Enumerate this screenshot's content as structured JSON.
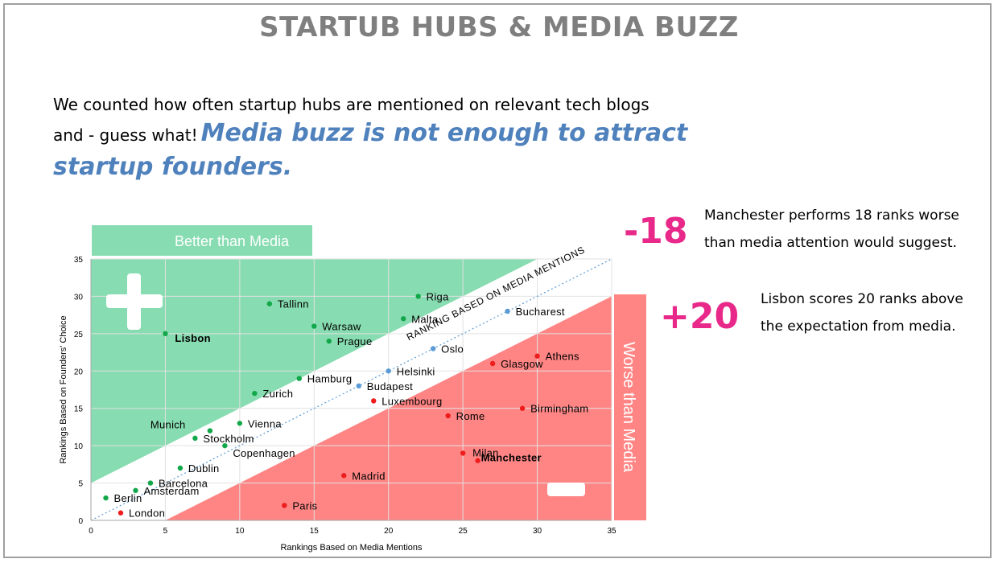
{
  "page": {
    "title": "STARTUB HUBS & MEDIA BUZZ",
    "intro_line1": "We counted how often startup hubs are mentioned on relevant tech blogs",
    "intro_line2": "and - guess what!",
    "highlight_line1": "Media buzz is not enough to attract",
    "highlight_line2": "startup founders."
  },
  "callouts": [
    {
      "number": "-18",
      "line1": "Manchester performs 18 ranks worse",
      "line2": "than  media attention would suggest."
    },
    {
      "number": "+20",
      "line1": "Lisbon scores 20 ranks above",
      "line2": "the expectation from media."
    }
  ],
  "colors": {
    "better_zone": "#88dcb1",
    "worse_zone": "#ff8585",
    "better_point": "#12a84a",
    "neutral_point": "#5b9bd5",
    "worse_point": "#ee1c1c",
    "accent": "#e8298a",
    "highlight": "#4f81bd"
  },
  "chart_data": {
    "type": "scatter",
    "xlabel": "Rankings Based on Media Mentions",
    "ylabel": "Rankings Based on Founders' Choice",
    "xlim": [
      0,
      35
    ],
    "ylim": [
      0,
      35
    ],
    "x_ticks": [
      0,
      5,
      10,
      15,
      20,
      25,
      30,
      35
    ],
    "y_ticks": [
      0,
      5,
      10,
      15,
      20,
      25,
      30,
      35
    ],
    "diagonal_label": "RANKING BASED ON MEDIA MENTIONS",
    "better_label": "Better than Media",
    "worse_label": "Worse than Media",
    "plus_icon": "plus-icon",
    "minus_icon": "minus-icon",
    "points": [
      {
        "label": "Berlin",
        "x": 1,
        "y": 3,
        "group": "better"
      },
      {
        "label": "London",
        "x": 2,
        "y": 1,
        "group": "worse"
      },
      {
        "label": "Amsterdam",
        "x": 3,
        "y": 4,
        "group": "better"
      },
      {
        "label": "Barcelona",
        "x": 4,
        "y": 5,
        "group": "better"
      },
      {
        "label": "Lisbon",
        "x": 5,
        "y": 25,
        "group": "better",
        "emphasis": true
      },
      {
        "label": "Dublin",
        "x": 6,
        "y": 7,
        "group": "better"
      },
      {
        "label": "Stockholm",
        "x": 7,
        "y": 11,
        "group": "better"
      },
      {
        "label": "Munich",
        "x": 8,
        "y": 12,
        "group": "better"
      },
      {
        "label": "Copenhagen",
        "x": 9,
        "y": 10,
        "group": "better"
      },
      {
        "label": "Vienna",
        "x": 10,
        "y": 13,
        "group": "better"
      },
      {
        "label": "Zurich",
        "x": 11,
        "y": 17,
        "group": "better"
      },
      {
        "label": "Tallinn",
        "x": 12,
        "y": 29,
        "group": "better"
      },
      {
        "label": "Paris",
        "x": 13,
        "y": 2,
        "group": "worse"
      },
      {
        "label": "Hamburg",
        "x": 14,
        "y": 19,
        "group": "better"
      },
      {
        "label": "Warsaw",
        "x": 15,
        "y": 26,
        "group": "better"
      },
      {
        "label": "Prague",
        "x": 16,
        "y": 24,
        "group": "better"
      },
      {
        "label": "Madrid",
        "x": 17,
        "y": 6,
        "group": "worse"
      },
      {
        "label": "Budapest",
        "x": 18,
        "y": 18,
        "group": "neutral"
      },
      {
        "label": "Luxembourg",
        "x": 19,
        "y": 16,
        "group": "worse"
      },
      {
        "label": "Helsinki",
        "x": 20,
        "y": 20,
        "group": "neutral"
      },
      {
        "label": "Malta",
        "x": 21,
        "y": 27,
        "group": "better"
      },
      {
        "label": "Riga",
        "x": 22,
        "y": 30,
        "group": "better"
      },
      {
        "label": "Oslo",
        "x": 23,
        "y": 23,
        "group": "neutral"
      },
      {
        "label": "Rome",
        "x": 24,
        "y": 14,
        "group": "worse"
      },
      {
        "label": "Milan",
        "x": 25,
        "y": 9,
        "group": "worse"
      },
      {
        "label": "Manchester",
        "x": 26,
        "y": 8,
        "group": "worse",
        "emphasis": true
      },
      {
        "label": "Glasgow",
        "x": 27,
        "y": 21,
        "group": "worse"
      },
      {
        "label": "Bucharest",
        "x": 28,
        "y": 28,
        "group": "neutral"
      },
      {
        "label": "Birmingham",
        "x": 29,
        "y": 15,
        "group": "worse"
      },
      {
        "label": "Athens",
        "x": 30,
        "y": 22,
        "group": "worse"
      }
    ]
  }
}
